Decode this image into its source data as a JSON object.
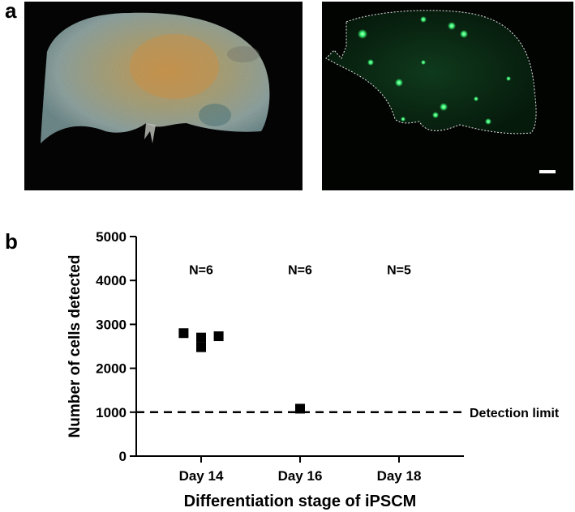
{
  "figure": {
    "panel_a_label": "a",
    "panel_b_label": "b"
  },
  "panel_a": {
    "left_image": "brightfield-micrograph",
    "right_image": "green-fluorescence-micrograph",
    "outline_color": "#ffffff",
    "fluorescence_color": "#3cff78",
    "has_scale_bar": true
  },
  "chart_data": {
    "type": "scatter",
    "title": "",
    "xlabel": "Differentiation stage of iPSCM",
    "ylabel": "Number of cells detected",
    "categories": [
      "Day 14",
      "Day 16",
      "Day 18"
    ],
    "ylim": [
      0,
      5000
    ],
    "yticks": [
      0,
      1000,
      2000,
      3000,
      4000,
      5000
    ],
    "grid": false,
    "points": [
      {
        "category": "Day 14",
        "offset": -0.18,
        "value": 2800
      },
      {
        "category": "Day 14",
        "offset": 0.0,
        "value": 2700
      },
      {
        "category": "Day 14",
        "offset": 0.18,
        "value": 2730
      },
      {
        "category": "Day 14",
        "offset": 0.0,
        "value": 2480
      },
      {
        "category": "Day 16",
        "offset": 0.0,
        "value": 1080
      }
    ],
    "n_labels": [
      {
        "category": "Day 14",
        "text": "N=6"
      },
      {
        "category": "Day 16",
        "text": "N=6"
      },
      {
        "category": "Day 18",
        "text": "N=5"
      }
    ],
    "reference_line": {
      "value": 1000,
      "label": "Detection limit",
      "style": "dashed"
    },
    "marker": "square",
    "marker_color": "#000000"
  }
}
